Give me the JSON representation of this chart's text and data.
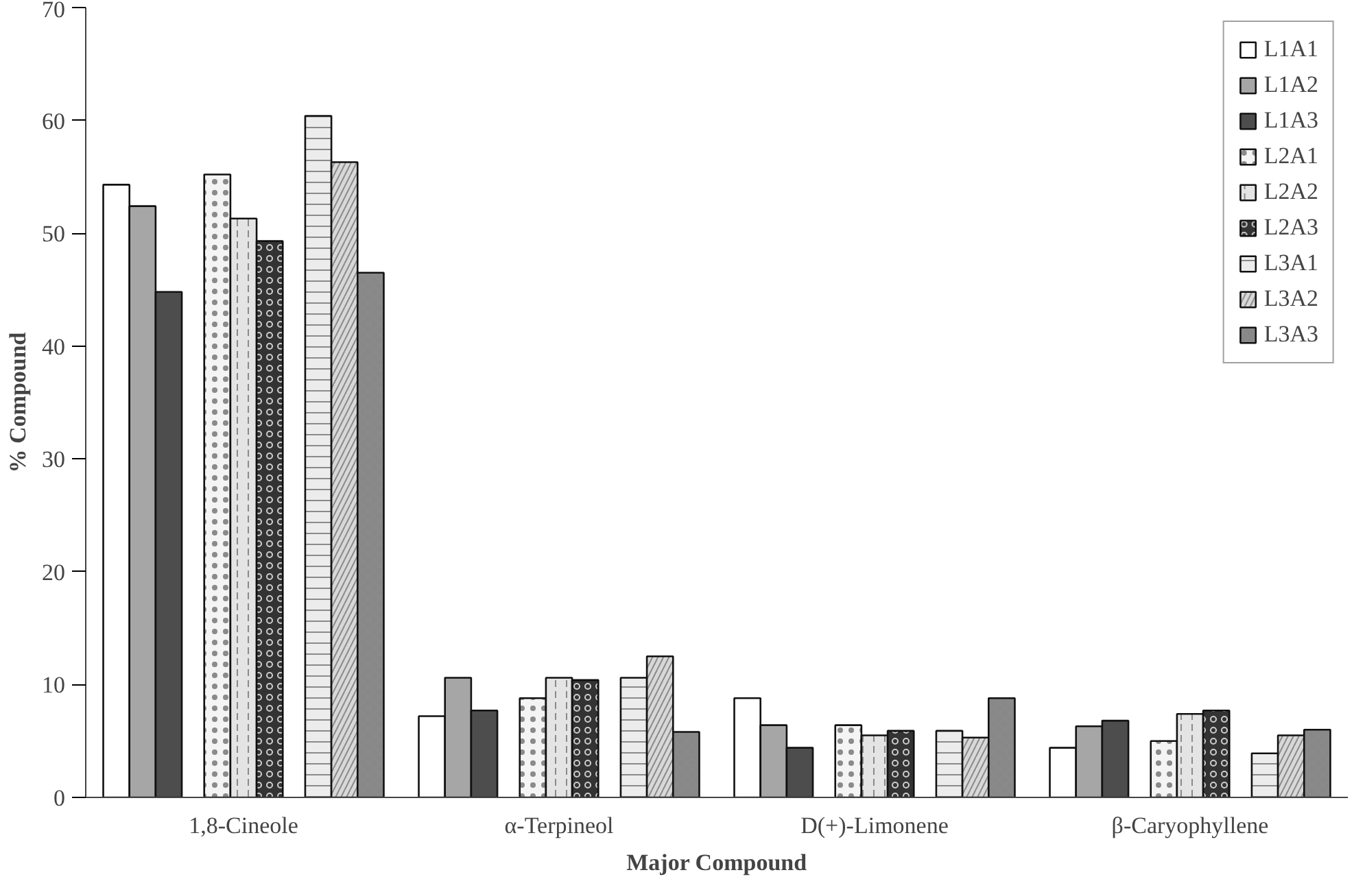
{
  "chart_data": {
    "type": "bar",
    "xlabel": "Major Compound",
    "ylabel": "% Compound",
    "categories": [
      "1,8-Cineole",
      "α-Terpineol",
      "D(+)-Limonene",
      "β-Caryophyllene"
    ],
    "ylim": [
      0,
      70
    ],
    "yticks": [
      0,
      10,
      20,
      30,
      40,
      50,
      60,
      70
    ],
    "grid": false,
    "legend": "top right",
    "series": [
      {
        "name": "L1A1",
        "color": "#ffffff",
        "values": [
          54.3,
          7.2,
          8.8,
          4.4
        ]
      },
      {
        "name": "L1A2",
        "color": "#a6a6a6",
        "values": [
          52.4,
          10.6,
          6.4,
          6.3
        ]
      },
      {
        "name": "L1A3",
        "color": "#4d4d4d",
        "values": [
          44.8,
          7.7,
          4.4,
          6.8
        ]
      },
      {
        "name": "L2A1",
        "color": "#f4f4f4",
        "values": [
          55.2,
          8.8,
          6.4,
          5.0
        ]
      },
      {
        "name": "L2A2",
        "color": "#e4e4e4",
        "values": [
          51.3,
          10.6,
          5.5,
          7.4
        ]
      },
      {
        "name": "L2A3",
        "color": "#333333",
        "values": [
          49.3,
          10.4,
          5.9,
          7.7
        ]
      },
      {
        "name": "L3A1",
        "color": "#ececec",
        "values": [
          60.4,
          10.6,
          5.9,
          3.9
        ]
      },
      {
        "name": "L3A2",
        "color": "#d8d8d8",
        "values": [
          56.3,
          12.5,
          5.3,
          5.5
        ]
      },
      {
        "name": "L3A3",
        "color": "#888888",
        "values": [
          46.5,
          5.8,
          8.8,
          6.0
        ]
      }
    ]
  }
}
